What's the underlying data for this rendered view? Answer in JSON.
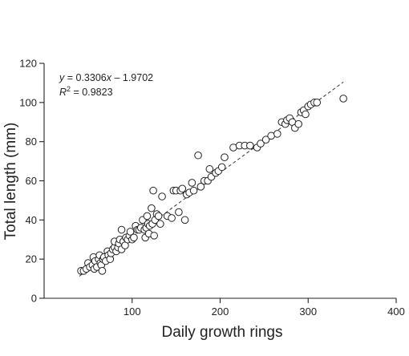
{
  "chart_data": {
    "type": "scatter",
    "xlabel": "Daily growth rings",
    "ylabel": "Total length (mm)",
    "xlim": [
      0,
      400
    ],
    "ylim": [
      0,
      120
    ],
    "x_ticks": [
      100,
      200,
      300,
      400
    ],
    "y_ticks": [
      0,
      20,
      40,
      60,
      80,
      100,
      120
    ],
    "grid": false,
    "annotation": {
      "equation_prefix": "y",
      "equation_rest": " = 0.3306",
      "equation_x": "x",
      "equation_tail": " – 1.9702",
      "r2_prefix": "R",
      "r2_sup": "2",
      "r2_value": " = 0.9823"
    },
    "fit": {
      "slope": 0.3306,
      "intercept": -1.9702,
      "x_range": [
        40,
        340
      ]
    },
    "points": [
      [
        42,
        14
      ],
      [
        45,
        14
      ],
      [
        48,
        15
      ],
      [
        50,
        18
      ],
      [
        52,
        16
      ],
      [
        55,
        17
      ],
      [
        56,
        21
      ],
      [
        57,
        15
      ],
      [
        58,
        19
      ],
      [
        60,
        16
      ],
      [
        62,
        20
      ],
      [
        63,
        22
      ],
      [
        64,
        18
      ],
      [
        65,
        17
      ],
      [
        66,
        14
      ],
      [
        67,
        20
      ],
      [
        68,
        21
      ],
      [
        70,
        19
      ],
      [
        72,
        24
      ],
      [
        73,
        22
      ],
      [
        75,
        20
      ],
      [
        76,
        23
      ],
      [
        78,
        25
      ],
      [
        80,
        26
      ],
      [
        80,
        29
      ],
      [
        82,
        24
      ],
      [
        84,
        26
      ],
      [
        85,
        28
      ],
      [
        86,
        30
      ],
      [
        88,
        25
      ],
      [
        88,
        35
      ],
      [
        90,
        29
      ],
      [
        92,
        27
      ],
      [
        93,
        31
      ],
      [
        95,
        30
      ],
      [
        97,
        32
      ],
      [
        98,
        34
      ],
      [
        100,
        30
      ],
      [
        102,
        31
      ],
      [
        104,
        37
      ],
      [
        106,
        35
      ],
      [
        108,
        35
      ],
      [
        110,
        36
      ],
      [
        112,
        40
      ],
      [
        114,
        35
      ],
      [
        115,
        31
      ],
      [
        116,
        36
      ],
      [
        117,
        42
      ],
      [
        118,
        38
      ],
      [
        119,
        33
      ],
      [
        120,
        37
      ],
      [
        122,
        46
      ],
      [
        123,
        38
      ],
      [
        124,
        55
      ],
      [
        125,
        32
      ],
      [
        126,
        40
      ],
      [
        128,
        43
      ],
      [
        130,
        42
      ],
      [
        132,
        38
      ],
      [
        134,
        52
      ],
      [
        140,
        42
      ],
      [
        145,
        41
      ],
      [
        147,
        55
      ],
      [
        150,
        55
      ],
      [
        153,
        44
      ],
      [
        155,
        55
      ],
      [
        157,
        56
      ],
      [
        160,
        40
      ],
      [
        162,
        53
      ],
      [
        165,
        54
      ],
      [
        168,
        59
      ],
      [
        170,
        55
      ],
      [
        175,
        73
      ],
      [
        178,
        57
      ],
      [
        182,
        60
      ],
      [
        186,
        60
      ],
      [
        188,
        66
      ],
      [
        190,
        62
      ],
      [
        195,
        64
      ],
      [
        198,
        65
      ],
      [
        202,
        67
      ],
      [
        205,
        72
      ],
      [
        215,
        77
      ],
      [
        222,
        78
      ],
      [
        228,
        78
      ],
      [
        234,
        78
      ],
      [
        242,
        77
      ],
      [
        246,
        79
      ],
      [
        252,
        81
      ],
      [
        258,
        83
      ],
      [
        265,
        84
      ],
      [
        270,
        90
      ],
      [
        274,
        89
      ],
      [
        276,
        91
      ],
      [
        279,
        92
      ],
      [
        282,
        90
      ],
      [
        285,
        87
      ],
      [
        289,
        89
      ],
      [
        292,
        95
      ],
      [
        295,
        96
      ],
      [
        297,
        94
      ],
      [
        300,
        98
      ],
      [
        303,
        99
      ],
      [
        307,
        100
      ],
      [
        310,
        100
      ],
      [
        340,
        102
      ]
    ]
  }
}
